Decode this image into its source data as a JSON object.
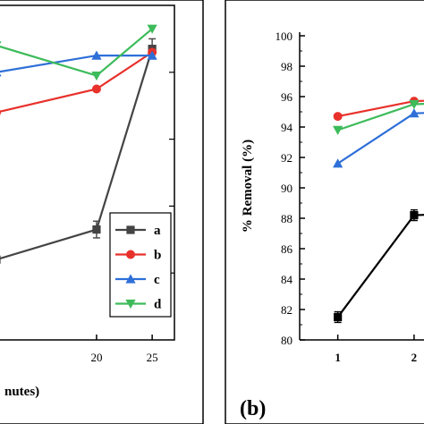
{
  "chart_data": [
    {
      "type": "line",
      "panel_label": "",
      "xlabel": "nutes)",
      "ylabel": "",
      "x_ticks": [
        20,
        25
      ],
      "xlim": [
        11,
        27
      ],
      "ylim": [
        0,
        100
      ],
      "legend_position": "bottom-right",
      "series": [
        {
          "name": "a",
          "color": "#444444",
          "marker": "square",
          "x": [
            11,
            20,
            25
          ],
          "y": [
            24,
            33,
            87
          ],
          "err": [
            0,
            2.5,
            3
          ]
        },
        {
          "name": "b",
          "color": "#e8312b",
          "marker": "circle",
          "x": [
            11,
            20,
            25
          ],
          "y": [
            68,
            75,
            86
          ],
          "err": [
            0,
            0,
            0
          ]
        },
        {
          "name": "c",
          "color": "#2e6fd8",
          "marker": "triangle-up",
          "x": [
            11,
            20,
            25
          ],
          "y": [
            80,
            85,
            85
          ],
          "err": [
            0,
            0,
            0
          ]
        },
        {
          "name": "d",
          "color": "#3dbb5a",
          "marker": "triangle-down",
          "x": [
            11,
            20,
            25
          ],
          "y": [
            88,
            79,
            93
          ],
          "err": [
            0,
            0,
            0
          ]
        }
      ]
    },
    {
      "type": "line",
      "panel_label": "(b)",
      "xlabel": "",
      "ylabel": "% Removal (%)",
      "x_ticks": [
        1,
        2
      ],
      "y_ticks": [
        80,
        82,
        84,
        86,
        88,
        90,
        92,
        94,
        96,
        98,
        100
      ],
      "xlim": [
        0.5,
        2.13
      ],
      "ylim": [
        80,
        101
      ],
      "series": [
        {
          "color": "#000000",
          "marker": "square",
          "x": [
            1,
            2
          ],
          "y": [
            81.5,
            88.2
          ],
          "err": [
            0.35,
            0.35
          ]
        },
        {
          "color": "#e8312b",
          "marker": "circle",
          "x": [
            1,
            2
          ],
          "y": [
            94.7,
            95.7
          ],
          "err": [
            0,
            0
          ]
        },
        {
          "color": "#2e6fd8",
          "marker": "triangle-up",
          "x": [
            1,
            2
          ],
          "y": [
            91.6,
            94.9
          ],
          "err": [
            0,
            0
          ]
        },
        {
          "color": "#3dbb5a",
          "marker": "triangle-down",
          "x": [
            1,
            2
          ],
          "y": [
            93.8,
            95.5
          ],
          "err": [
            0,
            0
          ]
        }
      ]
    }
  ]
}
